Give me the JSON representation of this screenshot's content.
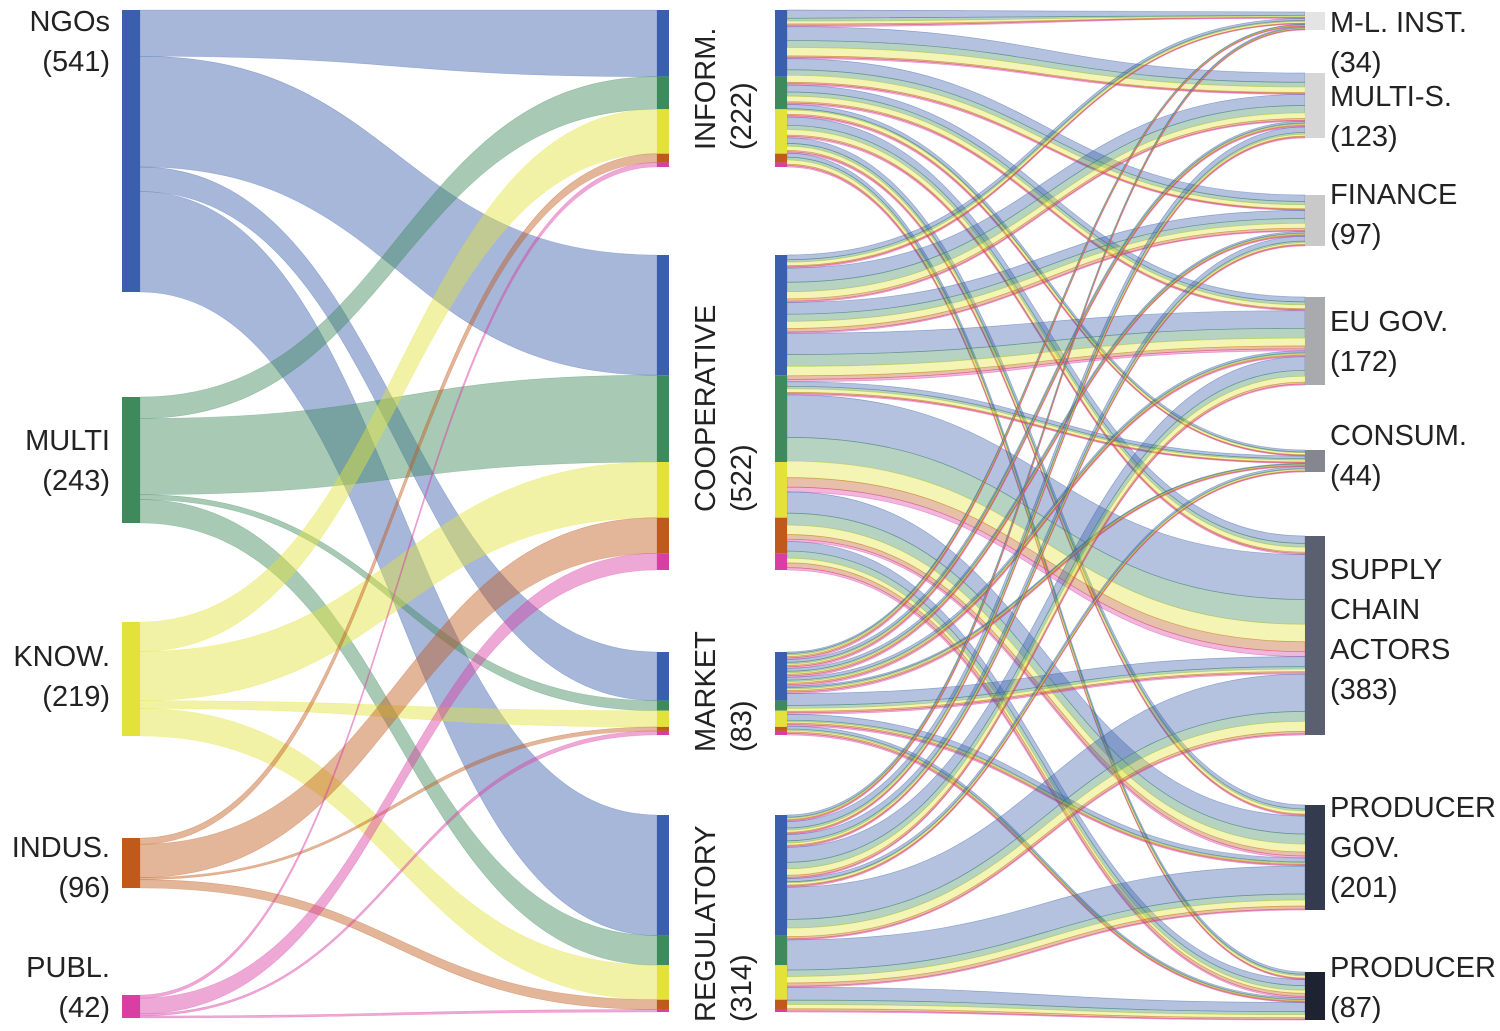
{
  "diagram": {
    "type": "sankey",
    "sources": [
      {
        "id": "ngos",
        "name": "NGOs",
        "count": "(541)",
        "color": "#3a5fac"
      },
      {
        "id": "multi",
        "name": "MULTI",
        "count": "(243)",
        "color": "#3f8a5c"
      },
      {
        "id": "know",
        "name": "KNOW.",
        "count": "(219)",
        "color": "#e3e23a"
      },
      {
        "id": "indus",
        "name": "INDUS.",
        "count": "(96)",
        "color": "#c05a1c"
      },
      {
        "id": "publ",
        "name": "PUBL.",
        "count": "(42)",
        "color": "#d93fa2"
      }
    ],
    "instruments": [
      {
        "id": "inform",
        "name": "INFORM.",
        "count": "(222)"
      },
      {
        "id": "coop",
        "name": "COOPERATIVE",
        "count": "(522)"
      },
      {
        "id": "market",
        "name": "MARKET",
        "count": "(83)"
      },
      {
        "id": "reg",
        "name": "REGULATORY",
        "count": "(314)"
      }
    ],
    "targets": [
      {
        "id": "ml",
        "lines": [
          "M-L. INST."
        ],
        "count": "(34)",
        "color": "#e4e4e4"
      },
      {
        "id": "multis",
        "lines": [
          "MULTI-S."
        ],
        "count": "(123)",
        "color": "#d6d6d6"
      },
      {
        "id": "finance",
        "lines": [
          "FINANCE"
        ],
        "count": "(97)",
        "color": "#c9c9c9"
      },
      {
        "id": "eugov",
        "lines": [
          "EU GOV."
        ],
        "count": "(172)",
        "color": "#a8aaae"
      },
      {
        "id": "consum",
        "lines": [
          "CONSUM."
        ],
        "count": "(44)",
        "color": "#84878f"
      },
      {
        "id": "supply",
        "lines": [
          "SUPPLY",
          "CHAIN",
          "ACTORS"
        ],
        "count": "(383)",
        "color": "#5b6070"
      },
      {
        "id": "prodgov",
        "lines": [
          "PRODUCER",
          "GOV."
        ],
        "count": "(201)",
        "color": "#353b4e"
      },
      {
        "id": "producer",
        "lines": [
          "PRODUCER"
        ],
        "count": "(87)",
        "color": "#1e2231"
      }
    ],
    "left_flows": [
      {
        "source": "ngos",
        "target": "inform",
        "value": 45
      },
      {
        "source": "ngos",
        "target": "coop",
        "value": 108
      },
      {
        "source": "ngos",
        "target": "market",
        "value": 24
      },
      {
        "source": "ngos",
        "target": "reg",
        "value": 98
      },
      {
        "source": "multi",
        "target": "inform",
        "value": 22
      },
      {
        "source": "multi",
        "target": "coop",
        "value": 78
      },
      {
        "source": "multi",
        "target": "market",
        "value": 5
      },
      {
        "source": "multi",
        "target": "reg",
        "value": 24
      },
      {
        "source": "know",
        "target": "inform",
        "value": 30
      },
      {
        "source": "know",
        "target": "coop",
        "value": 50
      },
      {
        "source": "know",
        "target": "market",
        "value": 8
      },
      {
        "source": "know",
        "target": "reg",
        "value": 28
      },
      {
        "source": "indus",
        "target": "inform",
        "value": 6
      },
      {
        "source": "indus",
        "target": "coop",
        "value": 32
      },
      {
        "source": "indus",
        "target": "market",
        "value": 2
      },
      {
        "source": "indus",
        "target": "reg",
        "value": 8
      },
      {
        "source": "publ",
        "target": "inform",
        "value": 3
      },
      {
        "source": "publ",
        "target": "coop",
        "value": 15
      },
      {
        "source": "publ",
        "target": "market",
        "value": 2
      },
      {
        "source": "publ",
        "target": "reg",
        "value": 2
      }
    ],
    "right_flows": [
      {
        "instrument": "inform",
        "target": "ml",
        "weights": [
          6,
          2,
          2,
          1,
          1
        ]
      },
      {
        "instrument": "inform",
        "target": "multis",
        "weights": [
          10,
          5,
          6,
          1,
          1
        ]
      },
      {
        "instrument": "inform",
        "target": "finance",
        "weights": [
          8,
          4,
          5,
          1,
          1
        ]
      },
      {
        "instrument": "inform",
        "target": "eugov",
        "weights": [
          5,
          3,
          4,
          1,
          1
        ]
      },
      {
        "instrument": "inform",
        "target": "consum",
        "weights": [
          3,
          1,
          3,
          1,
          1
        ]
      },
      {
        "instrument": "inform",
        "target": "supply",
        "weights": [
          6,
          3,
          4,
          1,
          1
        ]
      },
      {
        "instrument": "inform",
        "target": "prodgov",
        "weights": [
          4,
          2,
          3,
          1,
          1
        ]
      },
      {
        "instrument": "inform",
        "target": "producer",
        "weights": [
          3,
          2,
          3,
          1,
          1
        ]
      },
      {
        "instrument": "coop",
        "target": "ml",
        "weights": [
          4,
          2,
          3,
          1,
          1
        ]
      },
      {
        "instrument": "coop",
        "target": "multis",
        "weights": [
          12,
          8,
          6,
          2,
          1
        ]
      },
      {
        "instrument": "coop",
        "target": "finance",
        "weights": [
          10,
          6,
          6,
          3,
          1
        ]
      },
      {
        "instrument": "coop",
        "target": "eugov",
        "weights": [
          18,
          10,
          8,
          3,
          2
        ]
      },
      {
        "instrument": "coop",
        "target": "consum",
        "weights": [
          4,
          2,
          3,
          1,
          1
        ]
      },
      {
        "instrument": "coop",
        "target": "supply",
        "weights": [
          36,
          20,
          14,
          8,
          4
        ]
      },
      {
        "instrument": "coop",
        "target": "prodgov",
        "weights": [
          18,
          10,
          8,
          4,
          2
        ]
      },
      {
        "instrument": "coop",
        "target": "producer",
        "weights": [
          8,
          6,
          4,
          4,
          2
        ]
      },
      {
        "instrument": "market",
        "target": "ml",
        "weights": [
          1,
          1,
          1,
          1,
          1
        ]
      },
      {
        "instrument": "market",
        "target": "multis",
        "weights": [
          2,
          1,
          1,
          1,
          1
        ]
      },
      {
        "instrument": "market",
        "target": "finance",
        "weights": [
          2,
          1,
          1,
          1,
          1
        ]
      },
      {
        "instrument": "market",
        "target": "eugov",
        "weights": [
          2,
          1,
          1,
          1,
          1
        ]
      },
      {
        "instrument": "market",
        "target": "consum",
        "weights": [
          1,
          1,
          1,
          1,
          1
        ]
      },
      {
        "instrument": "market",
        "target": "supply",
        "weights": [
          8,
          2,
          2,
          1,
          1
        ]
      },
      {
        "instrument": "market",
        "target": "prodgov",
        "weights": [
          4,
          1,
          1,
          1,
          1
        ]
      },
      {
        "instrument": "market",
        "target": "producer",
        "weights": [
          2,
          1,
          1,
          1,
          1
        ]
      },
      {
        "instrument": "reg",
        "target": "ml",
        "weights": [
          2,
          1,
          1,
          1,
          1
        ]
      },
      {
        "instrument": "reg",
        "target": "multis",
        "weights": [
          6,
          2,
          2,
          1,
          1
        ]
      },
      {
        "instrument": "reg",
        "target": "finance",
        "weights": [
          6,
          2,
          2,
          1,
          1
        ]
      },
      {
        "instrument": "reg",
        "target": "eugov",
        "weights": [
          14,
          6,
          6,
          2,
          1
        ]
      },
      {
        "instrument": "reg",
        "target": "consum",
        "weights": [
          3,
          1,
          2,
          1,
          1
        ]
      },
      {
        "instrument": "reg",
        "target": "supply",
        "weights": [
          30,
          8,
          8,
          2,
          1
        ]
      },
      {
        "instrument": "reg",
        "target": "prodgov",
        "weights": [
          28,
          6,
          6,
          3,
          1
        ]
      },
      {
        "instrument": "reg",
        "target": "producer",
        "weights": [
          12,
          4,
          4,
          2,
          1
        ]
      }
    ]
  }
}
